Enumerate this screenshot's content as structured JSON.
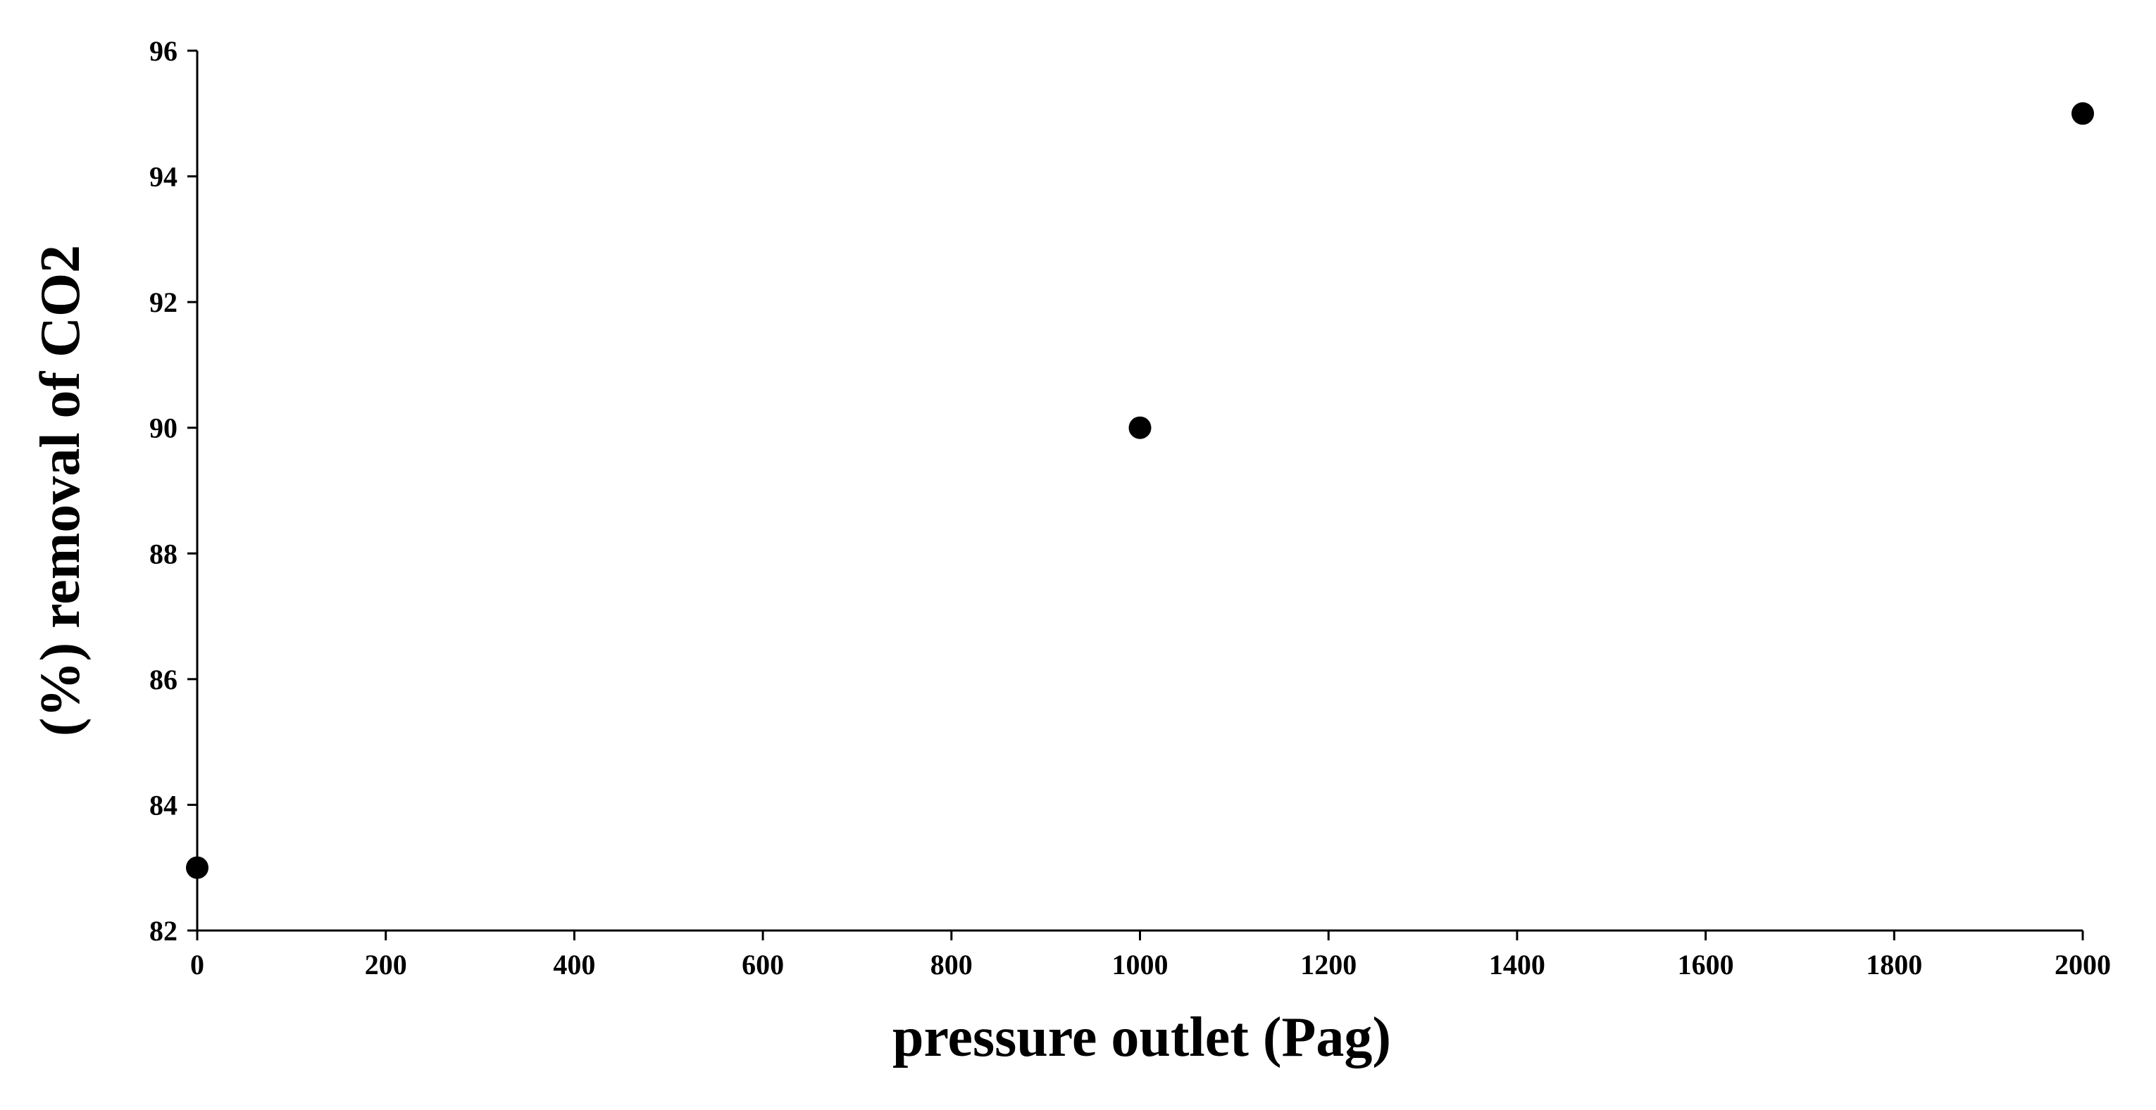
{
  "chart_data": {
    "type": "scatter",
    "x_label": "pressure outlet (Pag)",
    "y_label": "(%) removal  of CO2",
    "x": [
      0,
      1000,
      2000
    ],
    "values": [
      83,
      90,
      95
    ],
    "color": "#000000",
    "xlim": [
      0,
      2000
    ],
    "xticks": [
      0,
      200,
      400,
      600,
      800,
      1000,
      1200,
      1400,
      1600,
      1800,
      2000
    ],
    "ylim": [
      82,
      96
    ],
    "yticks": [
      82,
      84,
      86,
      88,
      90,
      92,
      94,
      96
    ],
    "grid": false
  }
}
